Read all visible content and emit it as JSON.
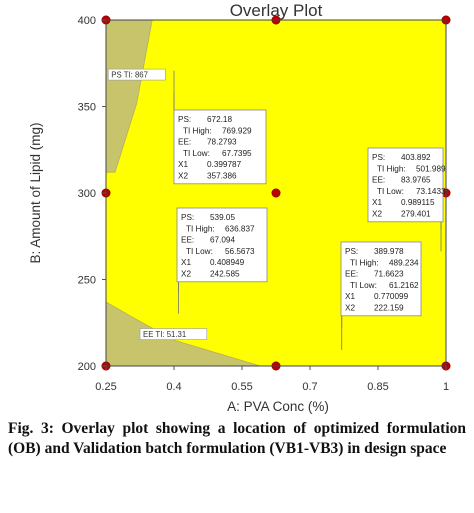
{
  "chart_data": {
    "type": "scatter",
    "title": "Overlay Plot",
    "xlabel": "A: PVA Conc (%)",
    "ylabel": "B: Amount of Lipid (mg)",
    "xlim": [
      0.25,
      1
    ],
    "ylim": [
      200,
      400
    ],
    "x_ticks": [
      "0.25",
      "0.4",
      "0.55",
      "0.7",
      "0.85",
      "1"
    ],
    "y_ticks": [
      "200",
      "250",
      "300",
      "350",
      "400"
    ],
    "grid": false,
    "design_points": [
      {
        "x": 0.25,
        "y": 200
      },
      {
        "x": 0.25,
        "y": 300
      },
      {
        "x": 0.25,
        "y": 400
      },
      {
        "x": 0.625,
        "y": 200
      },
      {
        "x": 0.625,
        "y": 300
      },
      {
        "x": 0.625,
        "y": 400
      },
      {
        "x": 1,
        "y": 200
      },
      {
        "x": 1,
        "y": 300
      },
      {
        "x": 1,
        "y": 400
      }
    ],
    "contour_labels": [
      {
        "text": "PS TI: 867",
        "x": 0.255,
        "y": 367
      },
      {
        "text": "EE TI: 51.31",
        "x": 0.325,
        "y": 217
      }
    ],
    "flags": [
      {
        "point": [
          0.4,
          358
        ],
        "lines": [
          [
            "PS:",
            "672.18"
          ],
          [
            "TI High:",
            "769.929"
          ],
          [
            "EE:",
            "78.2793"
          ],
          [
            "TI Low:",
            "67.7395"
          ],
          [
            "X1",
            "0.399787"
          ],
          [
            "X2",
            "357.386"
          ]
        ]
      },
      {
        "point": [
          0.41,
          243
        ],
        "lines": [
          [
            "PS:",
            "539.05"
          ],
          [
            "TI High:",
            "636.837"
          ],
          [
            "EE:",
            "67.094"
          ],
          [
            "TI Low:",
            "56.5673"
          ],
          [
            "X1",
            "0.408949"
          ],
          [
            "X2",
            "242.585"
          ]
        ]
      },
      {
        "point": [
          0.989,
          279
        ],
        "lines": [
          [
            "PS:",
            "403.892"
          ],
          [
            "TI High:",
            "501.989"
          ],
          [
            "EE:",
            "83.9765"
          ],
          [
            "TI Low:",
            "73.1433"
          ],
          [
            "X1",
            "0.989115"
          ],
          [
            "X2",
            "279.401"
          ]
        ]
      },
      {
        "point": [
          0.77,
          222
        ],
        "lines": [
          [
            "PS:",
            "389.978"
          ],
          [
            "TI High:",
            "489.234"
          ],
          [
            "EE:",
            "71.6623"
          ],
          [
            "TI Low:",
            "61.2162"
          ],
          [
            "X1",
            "0.770099"
          ],
          [
            "X2",
            "222.159"
          ]
        ]
      }
    ],
    "colors": {
      "feasible": "#ffff00",
      "infeasible": "#c8c46b",
      "design_point": "#c00000",
      "border": "#444444"
    }
  },
  "caption": "Fig. 3: Overlay plot showing a location of optimized formulation (OB) and Validation batch formulation (VB1-VB3) in design space"
}
